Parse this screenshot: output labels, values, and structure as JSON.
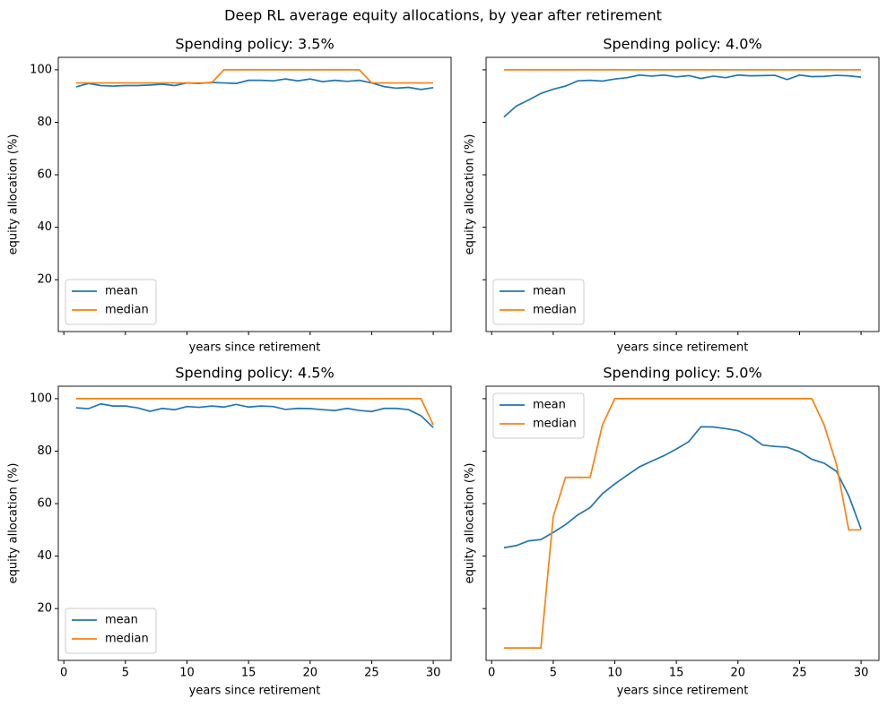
{
  "title": "Deep RL average equity allocations, by year after retirement",
  "chart_data": [
    {
      "type": "line",
      "title": "Spending policy: 3.5%",
      "xlabel": "years since retirement",
      "ylabel": "equity allocation (%)",
      "x": [
        1,
        2,
        3,
        4,
        5,
        6,
        7,
        8,
        9,
        10,
        11,
        12,
        13,
        14,
        15,
        16,
        17,
        18,
        19,
        20,
        21,
        22,
        23,
        24,
        25,
        26,
        27,
        28,
        29,
        30
      ],
      "series": [
        {
          "name": "mean",
          "color": "#1f77b4",
          "values": [
            93.5,
            94.8,
            94,
            93.8,
            94,
            94,
            94.2,
            94.5,
            94,
            95,
            94.8,
            95.2,
            95,
            94.8,
            96,
            96,
            95.8,
            96.5,
            95.8,
            96.5,
            95.5,
            96,
            95.6,
            96,
            95,
            93.6,
            93,
            93.3,
            92.5,
            93.2
          ]
        },
        {
          "name": "median",
          "color": "#ff7f0e",
          "values": [
            95,
            95,
            95,
            95,
            95,
            95,
            95,
            95,
            95,
            95,
            95,
            95,
            100,
            100,
            100,
            100,
            100,
            100,
            100,
            100,
            100,
            100,
            100,
            100,
            95,
            95,
            95,
            95,
            95,
            95
          ]
        }
      ],
      "xlim": [
        -0.45,
        31.45
      ],
      "xticks": [
        0,
        5,
        10,
        15,
        20,
        25,
        30
      ],
      "ylim": [
        0.25,
        104.75
      ],
      "yticks": [
        20,
        40,
        60,
        80,
        100
      ],
      "legend": "lower left"
    },
    {
      "type": "line",
      "title": "Spending policy: 4.0%",
      "xlabel": "years since retirement",
      "ylabel": "equity allocation (%)",
      "x": [
        1,
        2,
        3,
        4,
        5,
        6,
        7,
        8,
        9,
        10,
        11,
        12,
        13,
        14,
        15,
        16,
        17,
        18,
        19,
        20,
        21,
        22,
        23,
        24,
        25,
        26,
        27,
        28,
        29,
        30
      ],
      "series": [
        {
          "name": "mean",
          "color": "#1f77b4",
          "values": [
            82,
            86.2,
            88.5,
            91,
            92.6,
            93.8,
            95.8,
            96,
            95.7,
            96.5,
            97,
            98,
            97.6,
            98,
            97.3,
            97.8,
            96.7,
            97.6,
            97,
            98,
            97.7,
            97.8,
            97.9,
            96.3,
            98,
            97.4,
            97.5,
            97.9,
            97.7,
            97.2
          ]
        },
        {
          "name": "median",
          "color": "#ff7f0e",
          "values": [
            100,
            100,
            100,
            100,
            100,
            100,
            100,
            100,
            100,
            100,
            100,
            100,
            100,
            100,
            100,
            100,
            100,
            100,
            100,
            100,
            100,
            100,
            100,
            100,
            100,
            100,
            100,
            100,
            100,
            100
          ]
        }
      ],
      "xlim": [
        -0.45,
        31.45
      ],
      "xticks": [
        0,
        5,
        10,
        15,
        20,
        25,
        30
      ],
      "ylim": [
        0.25,
        104.75
      ],
      "yticks": [
        20,
        40,
        60,
        80,
        100
      ],
      "legend": "lower left"
    },
    {
      "type": "line",
      "title": "Spending policy: 4.5%",
      "xlabel": "years since retirement",
      "ylabel": "equity allocation (%)",
      "x": [
        1,
        2,
        3,
        4,
        5,
        6,
        7,
        8,
        9,
        10,
        11,
        12,
        13,
        14,
        15,
        16,
        17,
        18,
        19,
        20,
        21,
        22,
        23,
        24,
        25,
        26,
        27,
        28,
        29,
        30
      ],
      "series": [
        {
          "name": "mean",
          "color": "#1f77b4",
          "values": [
            96.5,
            96.2,
            98,
            97.2,
            97.2,
            96.5,
            95.2,
            96.3,
            95.8,
            97,
            96.7,
            97.2,
            96.8,
            97.8,
            96.8,
            97.2,
            97,
            95.9,
            96.3,
            96.2,
            95.8,
            95.5,
            96.3,
            95.5,
            95.1,
            96.3,
            96.3,
            95.8,
            93.5,
            89
          ]
        },
        {
          "name": "median",
          "color": "#ff7f0e",
          "values": [
            100,
            100,
            100,
            100,
            100,
            100,
            100,
            100,
            100,
            100,
            100,
            100,
            100,
            100,
            100,
            100,
            100,
            100,
            100,
            100,
            100,
            100,
            100,
            100,
            100,
            100,
            100,
            100,
            100,
            90
          ]
        }
      ],
      "xlim": [
        -0.45,
        31.45
      ],
      "xticks": [
        0,
        5,
        10,
        15,
        20,
        25,
        30
      ],
      "ylim": [
        0.25,
        104.75
      ],
      "yticks": [
        20,
        40,
        60,
        80,
        100
      ],
      "legend": "lower left"
    },
    {
      "type": "line",
      "title": "Spending policy: 5.0%",
      "xlabel": "years since retirement",
      "ylabel": "equity allocation (%)",
      "x": [
        1,
        2,
        3,
        4,
        5,
        6,
        7,
        8,
        9,
        10,
        11,
        12,
        13,
        14,
        15,
        16,
        17,
        18,
        19,
        20,
        21,
        22,
        23,
        24,
        25,
        26,
        27,
        28,
        29,
        30
      ],
      "series": [
        {
          "name": "mean",
          "color": "#1f77b4",
          "values": [
            43.2,
            44,
            45.8,
            46.3,
            49,
            52,
            55.7,
            58.5,
            63.8,
            67.5,
            70.8,
            74,
            76.2,
            78.3,
            80.8,
            83.6,
            89.3,
            89.2,
            88.6,
            87.8,
            85.7,
            82.3,
            81.8,
            81.5,
            79.8,
            76.9,
            75.4,
            72.3,
            63,
            50.3
          ]
        },
        {
          "name": "median",
          "color": "#ff7f0e",
          "values": [
            5,
            5,
            5,
            5,
            55,
            70,
            70,
            70,
            90,
            100,
            100,
            100,
            100,
            100,
            100,
            100,
            100,
            100,
            100,
            100,
            100,
            100,
            100,
            100,
            100,
            100,
            90,
            75,
            50,
            50
          ]
        }
      ],
      "xlim": [
        -0.45,
        31.45
      ],
      "xticks": [
        0,
        5,
        10,
        15,
        20,
        25,
        30
      ],
      "ylim": [
        0.25,
        104.75
      ],
      "yticks": [
        20,
        40,
        60,
        80,
        100
      ],
      "legend": "upper left"
    }
  ]
}
